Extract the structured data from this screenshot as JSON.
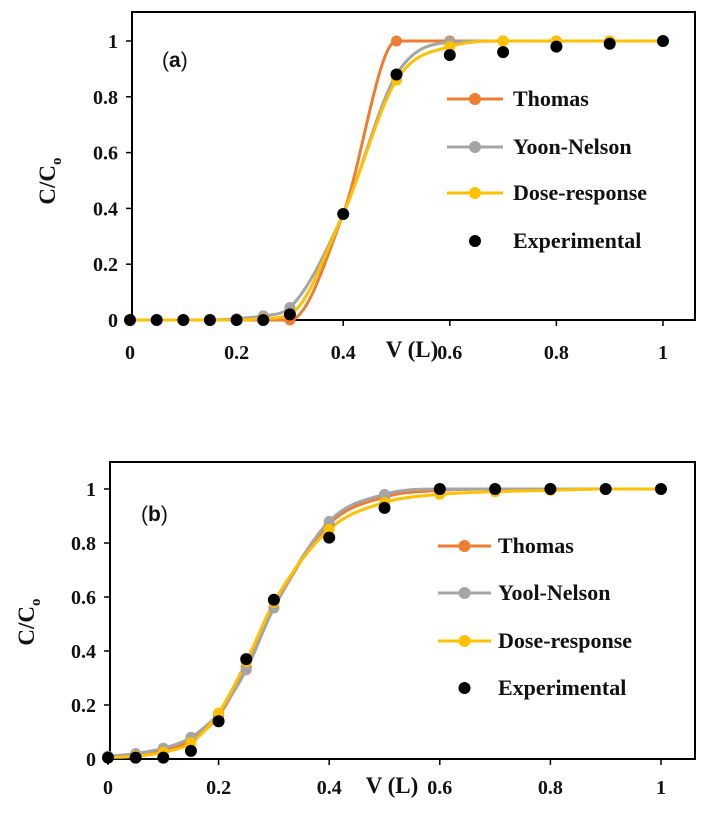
{
  "chart_data": [
    {
      "type": "line",
      "panel_label": "(a)",
      "panel_label_parts": [
        "(",
        "a",
        ")"
      ],
      "xlabel": "V (L)",
      "ylabel": "C/C",
      "ylabel_subscript": "o",
      "xlim": [
        0,
        1
      ],
      "ylim": [
        0,
        1
      ],
      "x_ticks": [
        "0",
        "0.2",
        "0.4",
        "0.6",
        "0.8",
        "1"
      ],
      "y_ticks": [
        "0",
        "0.2",
        "0.4",
        "0.6",
        "0.8",
        "1"
      ],
      "legend_placement": "right",
      "series": [
        {
          "name": "Thomas",
          "color": "#ED7D31",
          "x": [
            0,
            0.05,
            0.1,
            0.15,
            0.2,
            0.25,
            0.3,
            0.4,
            0.5,
            0.6,
            0.7,
            0.8,
            0.9,
            1.0
          ],
          "y": [
            0,
            0,
            0,
            0,
            0,
            0,
            0,
            0.38,
            1.0,
            1.0,
            1.0,
            1.0,
            1.0,
            1.0
          ]
        },
        {
          "name": "Yoon-Nelson",
          "color": "#A5A5A5",
          "x": [
            0,
            0.05,
            0.1,
            0.15,
            0.2,
            0.25,
            0.3,
            0.4,
            0.5,
            0.6,
            0.7,
            0.8,
            0.9,
            1.0
          ],
          "y": [
            0,
            0,
            0,
            0,
            0.005,
            0.015,
            0.045,
            0.38,
            0.88,
            0.995,
            1.0,
            1.0,
            1.0,
            1.0
          ]
        },
        {
          "name": "Dose-response",
          "color": "#FFC000",
          "x": [
            0,
            0.05,
            0.1,
            0.15,
            0.2,
            0.25,
            0.3,
            0.4,
            0.5,
            0.6,
            0.7,
            0.8,
            0.9,
            1.0
          ],
          "y": [
            0,
            0,
            0,
            0,
            0,
            0.005,
            0.02,
            0.38,
            0.86,
            0.98,
            1.0,
            1.0,
            1.0,
            1.0
          ]
        },
        {
          "name": "Experimental",
          "color": "#000000",
          "markers_only": true,
          "x": [
            0,
            0.05,
            0.1,
            0.15,
            0.2,
            0.25,
            0.3,
            0.4,
            0.5,
            0.6,
            0.7,
            0.8,
            0.9,
            1.0
          ],
          "y": [
            0,
            0,
            0,
            0,
            0,
            0,
            0.02,
            0.38,
            0.88,
            0.95,
            0.96,
            0.98,
            0.99,
            1.0
          ]
        }
      ]
    },
    {
      "type": "line",
      "panel_label": "(b)",
      "panel_label_parts": [
        "(",
        "b",
        ")"
      ],
      "xlabel": "V (L)",
      "ylabel": "C/C",
      "ylabel_subscript": "o",
      "xlim": [
        0,
        1
      ],
      "ylim": [
        0,
        1
      ],
      "x_ticks": [
        "0",
        "0.2",
        "0.4",
        "0.6",
        "0.8",
        "1"
      ],
      "y_ticks": [
        "0",
        "0.2",
        "0.4",
        "0.6",
        "0.8",
        "1"
      ],
      "legend_placement": "right",
      "series": [
        {
          "name": "Thomas",
          "color": "#ED7D31",
          "x": [
            0,
            0.05,
            0.1,
            0.15,
            0.2,
            0.25,
            0.3,
            0.4,
            0.5,
            0.6,
            0.7,
            0.8,
            0.9,
            1.0
          ],
          "y": [
            0.01,
            0.015,
            0.03,
            0.07,
            0.16,
            0.34,
            0.56,
            0.87,
            0.97,
            0.995,
            1.0,
            1.0,
            1.0,
            1.0
          ]
        },
        {
          "name": "Yool-Nelson",
          "color": "#A5A5A5",
          "x": [
            0,
            0.05,
            0.1,
            0.15,
            0.2,
            0.25,
            0.3,
            0.4,
            0.5,
            0.6,
            0.7,
            0.8,
            0.9,
            1.0
          ],
          "y": [
            0.01,
            0.02,
            0.04,
            0.08,
            0.17,
            0.33,
            0.56,
            0.88,
            0.98,
            1.0,
            1.0,
            1.0,
            1.0,
            1.0
          ]
        },
        {
          "name": "Dose-response",
          "color": "#FFC000",
          "x": [
            0,
            0.05,
            0.1,
            0.15,
            0.2,
            0.25,
            0.3,
            0.4,
            0.5,
            0.6,
            0.7,
            0.8,
            0.9,
            1.0
          ],
          "y": [
            0.005,
            0.01,
            0.025,
            0.06,
            0.17,
            0.36,
            0.58,
            0.85,
            0.95,
            0.98,
            0.99,
            0.995,
            1.0,
            1.0
          ]
        },
        {
          "name": "Experimental",
          "color": "#000000",
          "markers_only": true,
          "x": [
            0,
            0.05,
            0.1,
            0.15,
            0.2,
            0.25,
            0.3,
            0.4,
            0.5,
            0.6,
            0.7,
            0.8,
            0.9,
            1.0
          ],
          "y": [
            0.005,
            0.005,
            0.005,
            0.03,
            0.14,
            0.37,
            0.59,
            0.82,
            0.93,
            1.0,
            1.0,
            1.0,
            1.0,
            1.0
          ]
        }
      ]
    }
  ]
}
